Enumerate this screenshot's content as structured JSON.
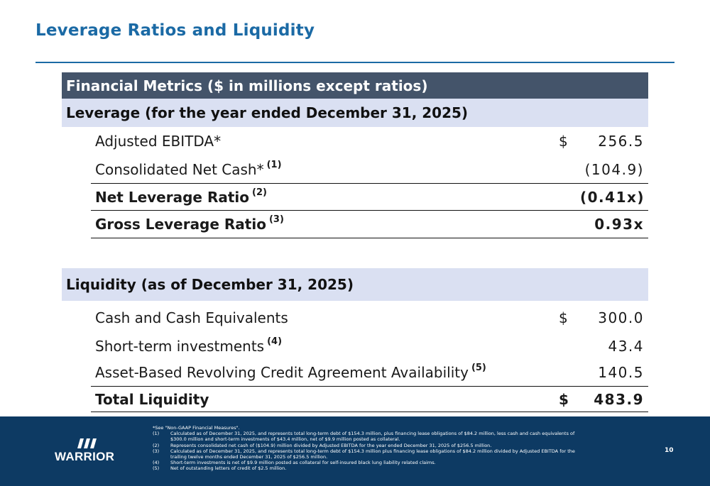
{
  "slide": {
    "title": "Leverage Ratios and Liquidity",
    "page_number": "10"
  },
  "table": {
    "header": "Financial Metrics ($ in millions except ratios)",
    "leverage": {
      "heading": "Leverage (for the year ended December 31, 2025)",
      "rows": [
        {
          "label": "Adjusted EBITDA*",
          "note": "",
          "currency": "$",
          "value": "256.5"
        },
        {
          "label": "Consolidated Net Cash*",
          "note": "(1)",
          "currency": "",
          "value": "(104.9)"
        },
        {
          "label": "Net Leverage Ratio",
          "note": "(2)",
          "currency": "",
          "value": "(0.41x)"
        },
        {
          "label": "Gross Leverage Ratio",
          "note": "(3)",
          "currency": "",
          "value": "0.93x"
        }
      ]
    },
    "liquidity": {
      "heading": "Liquidity (as of December 31, 2025)",
      "rows": [
        {
          "label": "Cash and Cash Equivalents",
          "note": "",
          "currency": "$",
          "value": "300.0"
        },
        {
          "label": "Short-term investments",
          "note": "(4)",
          "currency": "",
          "value": "43.4"
        },
        {
          "label": "Asset-Based Revolving Credit Agreement Availability",
          "note": "(5)",
          "currency": "",
          "value": "140.5"
        },
        {
          "label": "Total Liquidity",
          "note": "",
          "currency": "$",
          "value": "483.9"
        }
      ]
    }
  },
  "footer": {
    "logo_text": "WARRIOR",
    "intro_note": "*See \"Non-GAAP Financial Measures\".",
    "notes": [
      {
        "num": "(1)",
        "text": "Calculated as of December 31, 2025, and represents total long-term debt of $154.3 million, plus financing lease obligations of $84.2 million, less cash and cash equivalents of $300.0 million and short-term investments of $43.4 million, net of $9.9 million posted as collateral."
      },
      {
        "num": "(2)",
        "text": "Represents consolidated net cash of ($104.9) million divided by Adjusted EBITDA for the year ended December 31, 2025 of $256.5 million."
      },
      {
        "num": "(3)",
        "text": "Calculated as of December 31, 2025, and represents total long-term debt of $154.3 million plus financing lease obligations of $84.2 million divided by Adjusted EBITDA for the trailing twelve months ended December 31, 2025 of $256.5 million."
      },
      {
        "num": "(4)",
        "text": "Short-term investments is net of $9.9 million posted as collateral for self-insured black lung liability related claims."
      },
      {
        "num": "(5)",
        "text": "Net of outstanding letters of credit of $2.5 million."
      }
    ]
  },
  "colors": {
    "title": "#1b6aa5",
    "table_header_bg": "#44546a",
    "section_band_bg": "#dae0f2",
    "footer_bg": "#0d3a63"
  }
}
